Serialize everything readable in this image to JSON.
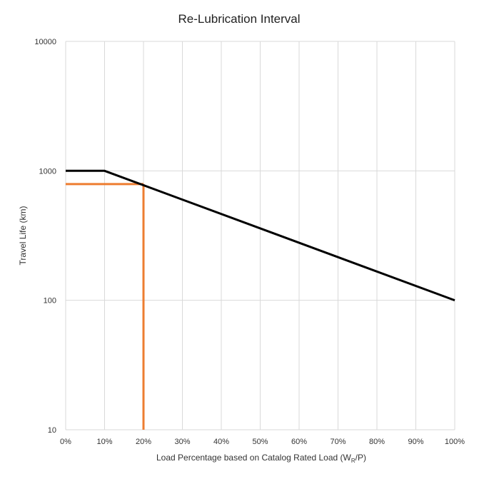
{
  "chart_data": {
    "type": "line",
    "title": "Re-Lubrication Interval",
    "xlabel_main": "Load Percentage based on Catalog Rated Load (W",
    "xlabel_sub": "R",
    "xlabel_end": "/P)",
    "ylabel": "Travel Life (km)",
    "x_scale": "linear",
    "y_scale": "log",
    "xlim": [
      0,
      100
    ],
    "ylim": [
      10,
      10000
    ],
    "grid": true,
    "x_ticks": [
      0,
      10,
      20,
      30,
      40,
      50,
      60,
      70,
      80,
      90,
      100
    ],
    "x_tick_labels": [
      "0%",
      "10%",
      "20%",
      "30%",
      "40%",
      "50%",
      "60%",
      "70%",
      "80%",
      "90%",
      "100%"
    ],
    "y_ticks": [
      10,
      100,
      1000,
      10000
    ],
    "y_tick_labels": [
      "10",
      "100",
      "1000",
      "10000"
    ],
    "series": [
      {
        "color": "#000000",
        "x": [
          0,
          10,
          100
        ],
        "y": [
          1000,
          1000,
          100
        ]
      }
    ],
    "reference_lines": {
      "color": "#ed7d31",
      "x": 20,
      "y": 790
    }
  }
}
